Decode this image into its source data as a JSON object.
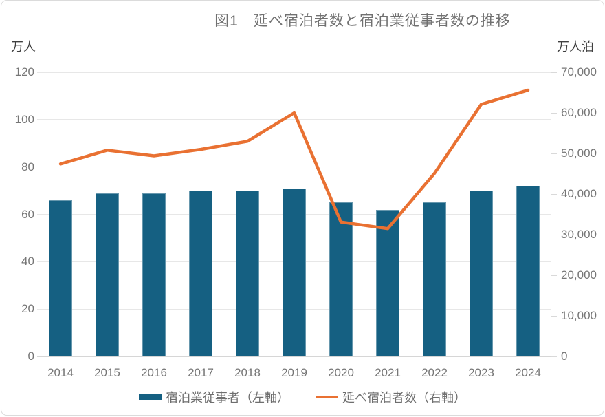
{
  "chart_data": {
    "type": "bar+line-combo",
    "title": "図1　延べ宿泊者数と宿泊業従事者数の推移",
    "categories": [
      "2014",
      "2015",
      "2016",
      "2017",
      "2018",
      "2019",
      "2020",
      "2021",
      "2022",
      "2023",
      "2024"
    ],
    "series": [
      {
        "name": "宿泊業従事者（左軸）",
        "type": "bar",
        "axis": "left",
        "color": "#156082",
        "values": [
          66,
          69,
          69,
          70,
          70,
          71,
          65,
          62,
          65,
          70,
          72
        ]
      },
      {
        "name": "延べ宿泊者数（右軸）",
        "type": "line",
        "axis": "right",
        "color": "#E97132",
        "values": [
          47400,
          50800,
          49400,
          51000,
          53000,
          60000,
          33100,
          31500,
          45100,
          62100,
          65600
        ]
      }
    ],
    "left_axis": {
      "unit": "万人",
      "min": 0,
      "max": 120,
      "step": 20,
      "tick_labels": [
        "0",
        "20",
        "40",
        "60",
        "80",
        "100",
        "120"
      ]
    },
    "right_axis": {
      "unit": "万人泊",
      "min": 0,
      "max": 70000,
      "step": 10000,
      "tick_labels": [
        "0",
        "10,000",
        "20,000",
        "30,000",
        "40,000",
        "50,000",
        "60,000",
        "70,000"
      ]
    },
    "legend_position": "bottom",
    "grid": "horizontal-only"
  },
  "colors": {
    "bar": "#156082",
    "line": "#E97132",
    "gridline": "#E7E7E7",
    "axis_baseline": "#D6D6D6",
    "tick_text": "#767676",
    "unit_text": "#3F3F3F",
    "title_text": "#707070",
    "frame_border": "#DBDBDB",
    "background": "#FFFFFF"
  }
}
